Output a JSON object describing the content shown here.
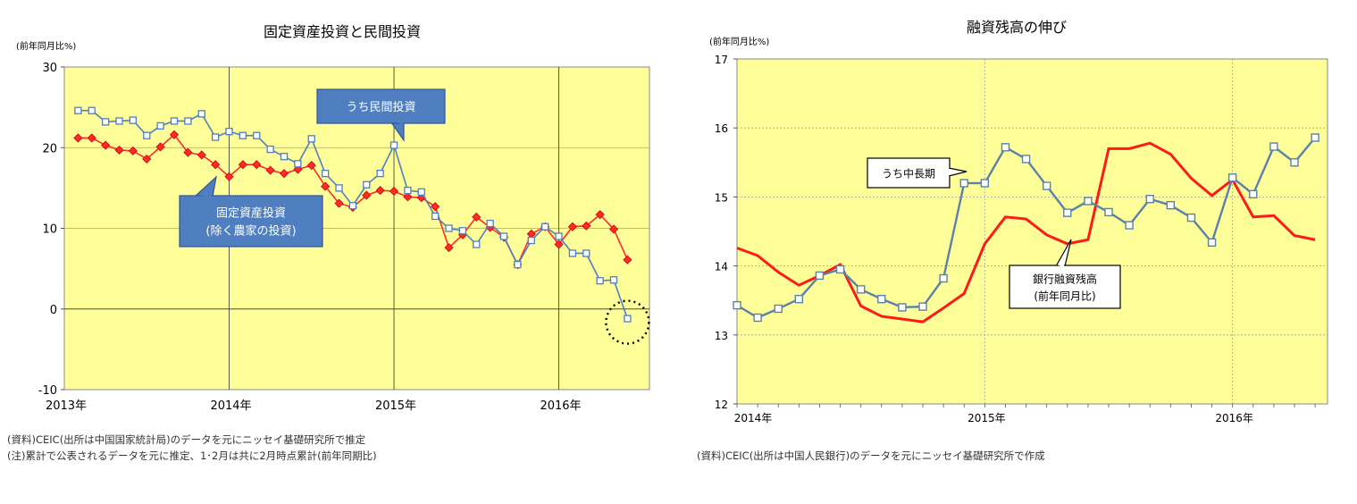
{
  "chart_data": [
    {
      "type": "line",
      "title": "固定資産投資と民間投資",
      "unit_label": "(前年同月比%)",
      "ylim": [
        -10,
        30
      ],
      "yticks": [
        -10,
        0,
        10,
        20,
        30
      ],
      "xticks": [
        {
          "label": "2013年",
          "x": 0
        },
        {
          "label": "2014年",
          "x": 12
        },
        {
          "label": "2015年",
          "x": 24
        },
        {
          "label": "2016年",
          "x": 36
        }
      ],
      "xlim": [
        0,
        42.6
      ],
      "background": "#ffff99",
      "series": [
        {
          "name": "固定資産投資（除く農家の投資）",
          "color": "#ff2a2a",
          "marker": "diamond",
          "x": [
            1,
            2,
            3,
            4,
            5,
            6,
            7,
            8,
            9,
            10,
            11,
            12,
            13,
            14,
            15,
            16,
            17,
            18,
            19,
            20,
            21,
            22,
            23,
            24,
            25,
            26,
            27,
            28,
            29,
            30,
            31,
            32,
            33,
            34,
            35,
            36,
            37,
            38,
            39,
            40,
            41
          ],
          "values": [
            21.2,
            21.2,
            20.3,
            19.7,
            19.6,
            18.6,
            20.1,
            21.6,
            19.4,
            19.1,
            17.9,
            16.4,
            17.9,
            17.9,
            17.2,
            16.8,
            17.3,
            17.8,
            15.2,
            13.1,
            12.6,
            14.1,
            14.7,
            14.6,
            13.9,
            13.8,
            12.7,
            7.6,
            9.2,
            11.4,
            10.1,
            8.9,
            5.5,
            9.3,
            10.2,
            8.0,
            10.2,
            10.3,
            11.7,
            9.9,
            6.1
          ]
        },
        {
          "name": "うち民間投資",
          "color": "#4f7fc0",
          "marker": "square",
          "x": [
            1,
            2,
            3,
            4,
            5,
            6,
            7,
            8,
            9,
            10,
            11,
            12,
            13,
            14,
            15,
            16,
            17,
            18,
            19,
            20,
            21,
            22,
            23,
            24,
            25,
            26,
            27,
            28,
            29,
            30,
            31,
            32,
            33,
            34,
            35,
            36,
            37,
            38,
            39,
            40,
            41
          ],
          "values": [
            24.6,
            24.6,
            23.2,
            23.3,
            23.4,
            21.5,
            22.7,
            23.3,
            23.3,
            24.2,
            21.3,
            22.0,
            21.5,
            21.5,
            19.8,
            18.9,
            18.0,
            21.1,
            16.8,
            15.0,
            12.8,
            15.4,
            16.8,
            20.3,
            14.7,
            14.5,
            11.5,
            10.0,
            9.7,
            8.0,
            10.6,
            9.0,
            5.5,
            8.5,
            10.2,
            9.0,
            6.9,
            6.9,
            3.5,
            3.6,
            -1.2
          ]
        }
      ],
      "annotations": [
        "うち民間投資",
        "固定資産投資",
        "(除く農家の投資)"
      ]
    },
    {
      "type": "line",
      "title": "融資残高の伸び",
      "unit_label": "(前年同月比%)",
      "ylim": [
        12,
        17
      ],
      "yticks": [
        12,
        13,
        14,
        15,
        16,
        17
      ],
      "xticks": [
        {
          "label": "2014年",
          "x": 0
        },
        {
          "label": "2015年",
          "x": 12
        },
        {
          "label": "2016年",
          "x": 24
        }
      ],
      "xlim": [
        0,
        28.6
      ],
      "background": "#ffff99",
      "series": [
        {
          "name": "銀行融資残高（前年同月比）",
          "color": "#ff1a1a",
          "marker": "none",
          "x": [
            0,
            1,
            2,
            3,
            4,
            5,
            6,
            7,
            8,
            9,
            10,
            11,
            12,
            13,
            14,
            15,
            16,
            17,
            18,
            19,
            20,
            21,
            22,
            23,
            24,
            25,
            26,
            27,
            28
          ],
          "values": [
            14.26,
            14.15,
            13.91,
            13.72,
            13.86,
            14.02,
            13.42,
            13.27,
            13.23,
            13.19,
            13.39,
            13.6,
            14.32,
            14.71,
            14.68,
            14.45,
            14.32,
            14.38,
            15.7,
            15.7,
            15.78,
            15.62,
            15.27,
            15.02,
            15.25,
            14.71,
            14.73,
            14.44,
            14.38
          ]
        },
        {
          "name": "うち中長期",
          "color": "#5a82a8",
          "marker": "square",
          "x": [
            0,
            1,
            2,
            3,
            4,
            5,
            6,
            7,
            8,
            9,
            10,
            11,
            12,
            13,
            14,
            15,
            16,
            17,
            18,
            19,
            20,
            21,
            22,
            23,
            24,
            25,
            26,
            27,
            28
          ],
          "values": [
            13.43,
            13.25,
            13.38,
            13.52,
            13.86,
            13.95,
            13.66,
            13.52,
            13.4,
            13.41,
            13.82,
            15.2,
            15.2,
            15.72,
            15.55,
            15.16,
            14.77,
            14.94,
            14.78,
            14.59,
            14.97,
            14.88,
            14.7,
            14.34,
            15.28,
            15.04,
            15.73,
            15.5,
            15.86
          ]
        }
      ],
      "annotations": [
        "うち中長期",
        "銀行融資残高",
        "(前年同月比)"
      ]
    }
  ],
  "notes": {
    "left_1": "(資料)CEIC(出所は中国国家統計局)のデータを元にニッセイ基礎研究所で推定",
    "left_2": "(注)累計で公表されるデータを元に推定、1･2月は共に2月時点累計(前年同期比)",
    "right_1": "(資料)CEIC(出所は中国人民銀行)のデータを元にニッセイ基礎研究所で作成"
  }
}
